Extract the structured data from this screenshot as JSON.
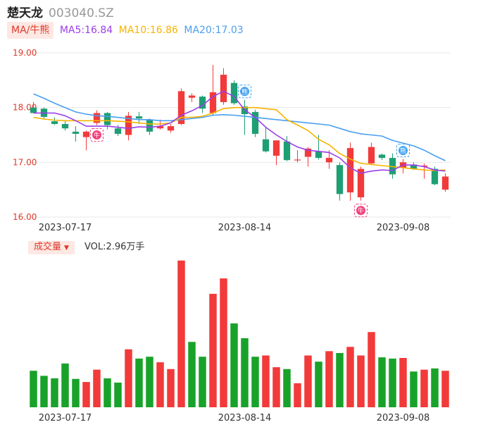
{
  "header": {
    "name": "楚天龙",
    "code": "003040.SZ"
  },
  "indicator": {
    "tag": "MA/牛熊",
    "ma5": {
      "label": "MA5:16.84",
      "color": "#9b3fe8"
    },
    "ma10": {
      "label": "MA10:16.86",
      "color": "#f5b400"
    },
    "ma20": {
      "label": "MA20:17.03",
      "color": "#4a9ff0"
    }
  },
  "volume_panel": {
    "tag": "成交量",
    "label": "VOL:2.96万手"
  },
  "colors": {
    "up": "#f23a3a",
    "down": "#1e9e73",
    "vol_down": "#19a22a",
    "ma5": "#9b3fe8",
    "ma10": "#f5b400",
    "ma20": "#4a9ff0"
  },
  "markers": [
    {
      "index": 6,
      "text": "牛",
      "color": "#f0407a"
    },
    {
      "index": 20,
      "text": "熊",
      "color": "#3ea0f0"
    },
    {
      "index": 31,
      "text": "牛",
      "color": "#f0407a"
    },
    {
      "index": 35,
      "text": "熊",
      "color": "#3ea0f0"
    }
  ],
  "chart_data": {
    "type": "candlestick",
    "yticks": [
      "19.00",
      "18.00",
      "17.00",
      "16.00"
    ],
    "ylim": [
      16.0,
      19.0
    ],
    "xtick_labels": [
      {
        "index": 3,
        "label": "2023-07-17"
      },
      {
        "index": 20,
        "label": "2023-08-14"
      },
      {
        "index": 35,
        "label": "2023-09-08"
      }
    ],
    "candles": [
      {
        "o": 18.0,
        "h": 18.1,
        "l": 17.9,
        "c": 17.9
      },
      {
        "o": 17.98,
        "h": 18.0,
        "l": 17.8,
        "c": 17.83
      },
      {
        "o": 17.75,
        "h": 17.82,
        "l": 17.68,
        "c": 17.7
      },
      {
        "o": 17.7,
        "h": 17.76,
        "l": 17.58,
        "c": 17.62
      },
      {
        "o": 17.56,
        "h": 17.66,
        "l": 17.38,
        "c": 17.52
      },
      {
        "o": 17.46,
        "h": 17.58,
        "l": 17.22,
        "c": 17.56
      },
      {
        "o": 17.72,
        "h": 17.95,
        "l": 17.68,
        "c": 17.9
      },
      {
        "o": 17.9,
        "h": 17.92,
        "l": 17.6,
        "c": 17.68
      },
      {
        "o": 17.62,
        "h": 17.68,
        "l": 17.48,
        "c": 17.52
      },
      {
        "o": 17.5,
        "h": 17.92,
        "l": 17.4,
        "c": 17.85
      },
      {
        "o": 17.84,
        "h": 17.92,
        "l": 17.7,
        "c": 17.8
      },
      {
        "o": 17.78,
        "h": 17.8,
        "l": 17.5,
        "c": 17.56
      },
      {
        "o": 17.62,
        "h": 17.78,
        "l": 17.6,
        "c": 17.66
      },
      {
        "o": 17.58,
        "h": 17.7,
        "l": 17.54,
        "c": 17.66
      },
      {
        "o": 17.7,
        "h": 18.35,
        "l": 17.68,
        "c": 18.3
      },
      {
        "o": 18.18,
        "h": 18.26,
        "l": 18.1,
        "c": 18.22
      },
      {
        "o": 18.2,
        "h": 18.22,
        "l": 17.9,
        "c": 17.98
      },
      {
        "o": 17.9,
        "h": 18.78,
        "l": 17.85,
        "c": 18.28
      },
      {
        "o": 18.1,
        "h": 18.72,
        "l": 18.05,
        "c": 18.6
      },
      {
        "o": 18.45,
        "h": 18.5,
        "l": 18.05,
        "c": 18.08
      },
      {
        "o": 18.02,
        "h": 18.14,
        "l": 17.5,
        "c": 17.88
      },
      {
        "o": 17.92,
        "h": 17.96,
        "l": 17.46,
        "c": 17.52
      },
      {
        "o": 17.42,
        "h": 17.65,
        "l": 17.18,
        "c": 17.2
      },
      {
        "o": 17.12,
        "h": 17.4,
        "l": 16.95,
        "c": 17.4
      },
      {
        "o": 17.38,
        "h": 17.48,
        "l": 17.02,
        "c": 17.04
      },
      {
        "o": 17.04,
        "h": 17.22,
        "l": 17.0,
        "c": 17.05
      },
      {
        "o": 17.1,
        "h": 17.28,
        "l": 16.92,
        "c": 17.25
      },
      {
        "o": 17.2,
        "h": 17.5,
        "l": 17.05,
        "c": 17.08
      },
      {
        "o": 17.0,
        "h": 17.22,
        "l": 16.88,
        "c": 17.08
      },
      {
        "o": 16.95,
        "h": 17.0,
        "l": 16.3,
        "c": 16.42
      },
      {
        "o": 16.45,
        "h": 17.36,
        "l": 16.3,
        "c": 17.26
      },
      {
        "o": 16.36,
        "h": 16.92,
        "l": 16.3,
        "c": 16.88
      },
      {
        "o": 16.98,
        "h": 17.36,
        "l": 16.95,
        "c": 17.28
      },
      {
        "o": 17.14,
        "h": 17.16,
        "l": 17.04,
        "c": 17.08
      },
      {
        "o": 17.08,
        "h": 17.16,
        "l": 16.7,
        "c": 16.78
      },
      {
        "o": 16.9,
        "h": 17.06,
        "l": 16.8,
        "c": 17.0
      },
      {
        "o": 16.96,
        "h": 17.0,
        "l": 16.86,
        "c": 16.88
      },
      {
        "o": 16.92,
        "h": 16.98,
        "l": 16.7,
        "c": 16.94
      },
      {
        "o": 16.88,
        "h": 16.92,
        "l": 16.58,
        "c": 16.6
      },
      {
        "o": 16.5,
        "h": 16.8,
        "l": 16.46,
        "c": 16.74
      }
    ],
    "ma5": [
      17.9,
      17.9,
      17.9,
      17.85,
      17.76,
      17.66,
      17.66,
      17.66,
      17.64,
      17.62,
      17.65,
      17.64,
      17.66,
      17.72,
      17.86,
      17.94,
      18.04,
      18.2,
      18.3,
      18.2,
      17.96,
      17.82,
      17.64,
      17.5,
      17.38,
      17.28,
      17.22,
      17.2,
      17.18,
      17.08,
      16.9,
      16.8,
      16.84,
      16.86,
      16.85,
      16.95,
      16.95,
      16.92,
      16.86,
      16.84
    ],
    "ma10": [
      17.82,
      17.79,
      17.77,
      17.76,
      17.76,
      17.76,
      17.76,
      17.76,
      17.75,
      17.74,
      17.72,
      17.7,
      17.7,
      17.72,
      17.82,
      17.82,
      17.84,
      17.9,
      17.98,
      18.0,
      18.0,
      18.0,
      17.98,
      17.96,
      17.78,
      17.68,
      17.58,
      17.42,
      17.32,
      17.16,
      17.06,
      16.98,
      16.96,
      16.94,
      16.92,
      16.9,
      16.88,
      16.86,
      16.85,
      16.86
    ],
    "ma20": [
      18.25,
      18.17,
      18.08,
      18.0,
      17.92,
      17.88,
      17.85,
      17.84,
      17.82,
      17.8,
      17.78,
      17.78,
      17.76,
      17.76,
      17.78,
      17.8,
      17.82,
      17.86,
      17.87,
      17.86,
      17.84,
      17.82,
      17.8,
      17.78,
      17.76,
      17.74,
      17.72,
      17.7,
      17.68,
      17.62,
      17.56,
      17.52,
      17.5,
      17.48,
      17.4,
      17.35,
      17.3,
      17.22,
      17.12,
      17.03
    ],
    "volume_ticks": [
      {
        "index": 3,
        "label": "2023-07-17"
      },
      {
        "index": 20,
        "label": "2023-08-14"
      },
      {
        "index": 35,
        "label": "2023-09-08"
      }
    ],
    "volume": [
      {
        "v": 2.96,
        "up": false
      },
      {
        "v": 2.55,
        "up": false
      },
      {
        "v": 2.35,
        "up": false
      },
      {
        "v": 3.55,
        "up": false
      },
      {
        "v": 2.3,
        "up": false
      },
      {
        "v": 2.05,
        "up": true
      },
      {
        "v": 3.05,
        "up": true
      },
      {
        "v": 2.35,
        "up": false
      },
      {
        "v": 2.0,
        "up": false
      },
      {
        "v": 4.7,
        "up": true
      },
      {
        "v": 3.95,
        "up": false
      },
      {
        "v": 4.1,
        "up": false
      },
      {
        "v": 3.65,
        "up": true
      },
      {
        "v": 3.1,
        "up": true
      },
      {
        "v": 11.9,
        "up": true
      },
      {
        "v": 5.3,
        "up": false
      },
      {
        "v": 4.1,
        "up": false
      },
      {
        "v": 9.2,
        "up": true
      },
      {
        "v": 10.45,
        "up": true
      },
      {
        "v": 6.8,
        "up": false
      },
      {
        "v": 5.6,
        "up": false
      },
      {
        "v": 4.1,
        "up": false
      },
      {
        "v": 4.2,
        "up": true
      },
      {
        "v": 3.25,
        "up": true
      },
      {
        "v": 3.1,
        "up": false
      },
      {
        "v": 1.95,
        "up": true
      },
      {
        "v": 4.2,
        "up": true
      },
      {
        "v": 3.7,
        "up": false
      },
      {
        "v": 4.55,
        "up": true
      },
      {
        "v": 4.4,
        "up": false
      },
      {
        "v": 4.9,
        "up": true
      },
      {
        "v": 4.2,
        "up": true
      },
      {
        "v": 6.1,
        "up": true
      },
      {
        "v": 4.05,
        "up": false
      },
      {
        "v": 3.95,
        "up": false
      },
      {
        "v": 4.0,
        "up": true
      },
      {
        "v": 2.9,
        "up": false
      },
      {
        "v": 3.05,
        "up": true
      },
      {
        "v": 3.15,
        "up": false
      },
      {
        "v": 2.96,
        "up": true
      }
    ],
    "volume_max": 12.0
  }
}
